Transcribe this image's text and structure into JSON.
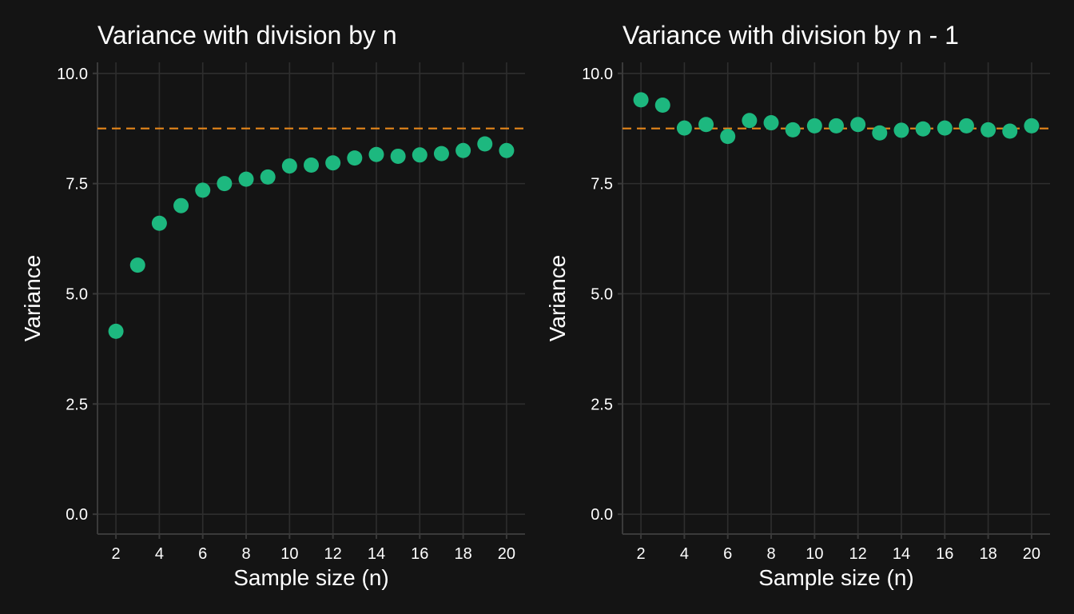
{
  "colors": {
    "background": "#141414",
    "point": "#1db87f",
    "reference_line": "#e6861a",
    "grid": "#2e2e2e",
    "text": "#ffffff"
  },
  "chart_data": [
    {
      "type": "scatter",
      "title": "Variance with division by n",
      "xlabel": "Sample size (n)",
      "ylabel": "Variance",
      "xlim": [
        1.15,
        20.85
      ],
      "ylim": [
        -0.45,
        10.25
      ],
      "x_ticks": [
        2,
        4,
        6,
        8,
        10,
        12,
        14,
        16,
        18,
        20
      ],
      "x_tick_labels": [
        "2",
        "4",
        "6",
        "8",
        "10",
        "12",
        "14",
        "16",
        "18",
        "20"
      ],
      "y_ticks": [
        0,
        2.5,
        5,
        7.5,
        10
      ],
      "y_tick_labels": [
        "0.0",
        "2.5",
        "5.0",
        "7.5",
        "10.0"
      ],
      "grid": true,
      "legend": "none",
      "reference_line": {
        "y": 8.75,
        "style": "dashed"
      },
      "x": [
        2,
        3,
        4,
        5,
        6,
        7,
        8,
        9,
        10,
        11,
        12,
        13,
        14,
        15,
        16,
        17,
        18,
        19,
        20
      ],
      "y": [
        4.15,
        5.65,
        6.6,
        7.0,
        7.35,
        7.5,
        7.6,
        7.65,
        7.9,
        7.92,
        7.97,
        8.08,
        8.16,
        8.12,
        8.15,
        8.18,
        8.25,
        8.4,
        8.25
      ]
    },
    {
      "type": "scatter",
      "title": "Variance with division by n - 1",
      "xlabel": "Sample size (n)",
      "ylabel": "Variance",
      "xlim": [
        1.15,
        20.85
      ],
      "ylim": [
        -0.45,
        10.25
      ],
      "x_ticks": [
        2,
        4,
        6,
        8,
        10,
        12,
        14,
        16,
        18,
        20
      ],
      "x_tick_labels": [
        "2",
        "4",
        "6",
        "8",
        "10",
        "12",
        "14",
        "16",
        "18",
        "20"
      ],
      "y_ticks": [
        0,
        2.5,
        5,
        7.5,
        10
      ],
      "y_tick_labels": [
        "0.0",
        "2.5",
        "5.0",
        "7.5",
        "10.0"
      ],
      "grid": true,
      "legend": "none",
      "reference_line": {
        "y": 8.75,
        "style": "dashed"
      },
      "x": [
        2,
        3,
        4,
        5,
        6,
        7,
        8,
        9,
        10,
        11,
        12,
        13,
        14,
        15,
        16,
        17,
        18,
        19,
        20
      ],
      "y": [
        9.4,
        9.28,
        8.76,
        8.84,
        8.57,
        8.93,
        8.88,
        8.72,
        8.81,
        8.81,
        8.84,
        8.65,
        8.71,
        8.74,
        8.76,
        8.81,
        8.72,
        8.69,
        8.81
      ]
    }
  ]
}
